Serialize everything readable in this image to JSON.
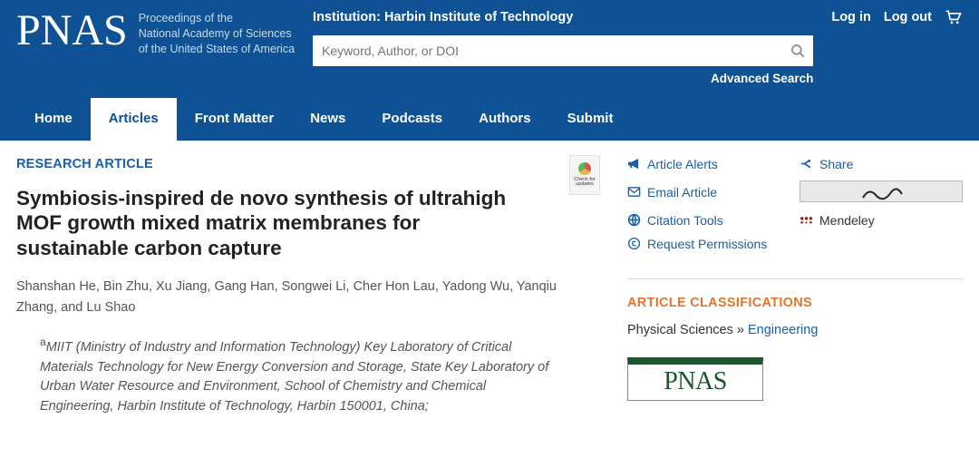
{
  "colors": {
    "header_bg": "#0e5295",
    "link_blue": "#185fa7",
    "orange": "#e37528",
    "pnas_green": "#1c572f",
    "mendeley_red": "#a4171c"
  },
  "header": {
    "logo": "PNAS",
    "subtitle_line1": "Proceedings of the",
    "subtitle_line2": "National Academy of Sciences",
    "subtitle_line3": "of the United States of America",
    "institution": "Institution: Harbin Institute of Technology",
    "search_placeholder": "Keyword, Author, or DOI",
    "advanced": "Advanced Search",
    "login": "Log in",
    "logout": "Log out"
  },
  "nav": {
    "items": [
      "Home",
      "Articles",
      "Front Matter",
      "News",
      "Podcasts",
      "Authors",
      "Submit"
    ],
    "active_index": 1
  },
  "article": {
    "label": "RESEARCH ARTICLE",
    "title": "Symbiosis-inspired de novo synthesis of ultrahigh MOF growth mixed matrix membranes for sustainable carbon capture",
    "authors": "Shanshan He, Bin Zhu, Xu Jiang, Gang Han, Songwei Li, Cher Hon Lau, Yadong Wu, Yanqiu Zhang, and Lu Shao",
    "affiliation_sup": "a",
    "affiliation": "MIIT (Ministry of Industry and Information Technology) Key Laboratory of Critical Materials Technology for New Energy Conversion and Storage, State Key Laboratory of Urban Water Resource and Environment, School of Chemistry and Chemical Engineering, Harbin Institute of Technology, Harbin 150001, China;",
    "check_updates": "Check for updates"
  },
  "tools": {
    "alerts": "Article Alerts",
    "share": "Share",
    "email": "Email Article",
    "citation": "Citation Tools",
    "mendeley": "Mendeley",
    "permissions": "Request Permissions"
  },
  "classifications": {
    "heading": "ARTICLE CLASSIFICATIONS",
    "primary": "Physical Sciences",
    "sep": " » ",
    "secondary": "Engineering"
  },
  "sidebar_box": {
    "label": "PNAS"
  }
}
